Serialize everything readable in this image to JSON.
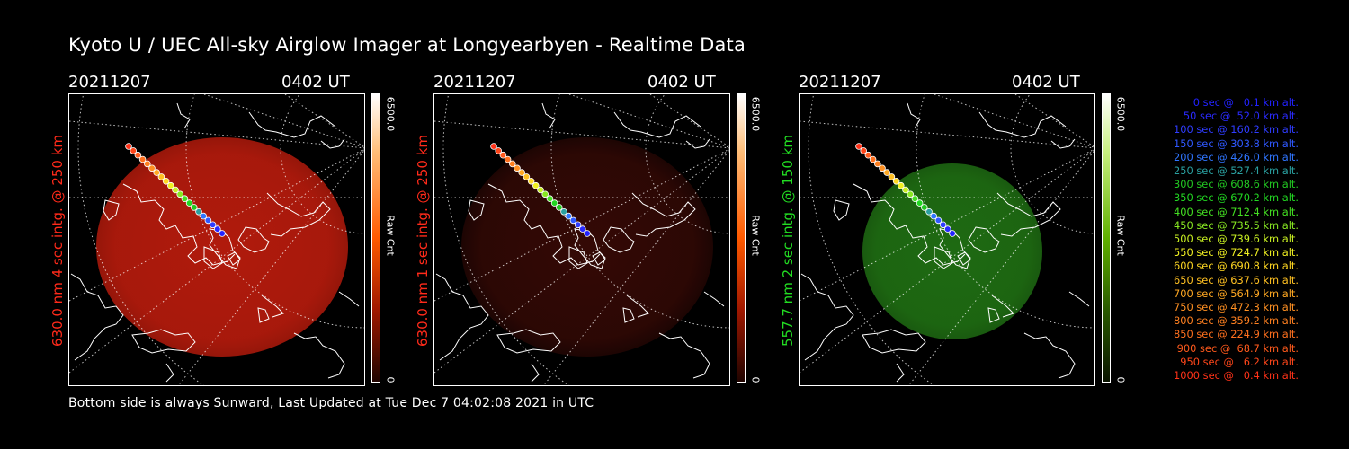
{
  "title": "Kyoto U / UEC All-sky Airglow Imager at Longyearbyen - Realtime Data",
  "footer": "Bottom side is always Sunward, Last Updated at Tue Dec  7 04:02:08 2021 in UTC",
  "panels": [
    {
      "date": "20211207",
      "time": "0402 UT",
      "side_label": "630.0 nm  4 sec intg. @ 250 km",
      "label_color": "#ff2a1a",
      "colorbar": {
        "max": "6500.0",
        "unit": "Raw Cnt",
        "min": "0",
        "color": "#ff2a00"
      },
      "glow": "#b01a0c"
    },
    {
      "date": "20211207",
      "time": "0402 UT",
      "side_label": "630.0 nm  1 sec intg. @ 250 km",
      "label_color": "#ff2a1a",
      "colorbar": {
        "max": "6500.0",
        "unit": "Raw Cnt",
        "min": "0",
        "color": "#ff2a00"
      },
      "glow": "#3a0a06"
    },
    {
      "date": "20211207",
      "time": "0402 UT",
      "side_label": "557.7 nm  2 sec intg. @ 150 km",
      "label_color": "#22dd22",
      "colorbar": {
        "max": "6500.0",
        "unit": "Raw Cnt",
        "min": "0",
        "color": "#3aa000"
      },
      "glow": "#1e6a12"
    }
  ],
  "legend": [
    {
      "text": "0 sec @   0.1 km alt.",
      "color": "#2222ff"
    },
    {
      "text": "50 sec @  52.0 km alt.",
      "color": "#2a2aff"
    },
    {
      "text": "100 sec @ 160.2 km alt.",
      "color": "#2f3cff"
    },
    {
      "text": "150 sec @ 303.8 km alt.",
      "color": "#2f58ff"
    },
    {
      "text": "200 sec @ 426.0 km alt.",
      "color": "#2f75ff"
    },
    {
      "text": "250 sec @ 527.4 km alt.",
      "color": "#2aa0a0"
    },
    {
      "text": "300 sec @ 608.6 km alt.",
      "color": "#22c822"
    },
    {
      "text": "350 sec @ 670.2 km alt.",
      "color": "#22d822"
    },
    {
      "text": "400 sec @ 712.4 km alt.",
      "color": "#44e022"
    },
    {
      "text": "450 sec @ 735.5 km alt.",
      "color": "#88e822"
    },
    {
      "text": "500 sec @ 739.6 km alt.",
      "color": "#c8f022"
    },
    {
      "text": "550 sec @ 724.7 km alt.",
      "color": "#f0f022"
    },
    {
      "text": "600 sec @ 690.8 km alt.",
      "color": "#ffd822"
    },
    {
      "text": "650 sec @ 637.6 km alt.",
      "color": "#ffc022"
    },
    {
      "text": "700 sec @ 564.9 km alt.",
      "color": "#ffa822"
    },
    {
      "text": "750 sec @ 472.3 km alt.",
      "color": "#ff9022"
    },
    {
      "text": "800 sec @ 359.2 km alt.",
      "color": "#ff8020"
    },
    {
      "text": "850 sec @ 224.9 km alt.",
      "color": "#ff701e"
    },
    {
      "text": "900 sec @  68.7 km alt.",
      "color": "#ff5a1c"
    },
    {
      "text": "950 sec @   6.2 km alt.",
      "color": "#ff461a"
    },
    {
      "text": "1000 sec @   0.4 km alt.",
      "color": "#ff3218"
    }
  ]
}
